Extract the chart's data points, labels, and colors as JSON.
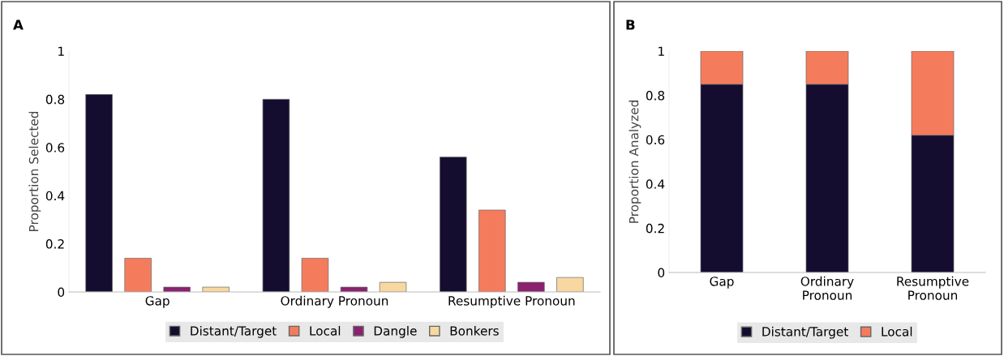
{
  "chart_data": [
    {
      "type": "bar",
      "title": "A",
      "ylabel": "Proportion Selected",
      "categories": [
        "Gap",
        "Ordinary Pronoun",
        "Resumptive Pronoun"
      ],
      "series": [
        {
          "name": "Distant/Target",
          "color": "#150d30",
          "values": [
            0.82,
            0.8,
            0.56
          ]
        },
        {
          "name": "Local",
          "color": "#f47c5c",
          "values": [
            0.14,
            0.14,
            0.34
          ]
        },
        {
          "name": "Dangle",
          "color": "#8a2270",
          "values": [
            0.02,
            0.02,
            0.04
          ]
        },
        {
          "name": "Bonkers",
          "color": "#f8d8a0",
          "values": [
            0.02,
            0.04,
            0.06
          ]
        }
      ],
      "ylim": [
        0,
        1
      ],
      "yticks": [
        0,
        0.2,
        0.4,
        0.6,
        0.8,
        1
      ],
      "grid": false,
      "legend": "bottom"
    },
    {
      "type": "bar",
      "stacked": true,
      "title": "B",
      "ylabel": "Proportion Analyzed",
      "categories": [
        "Gap",
        "Ordinary\nPronoun",
        "Resumptive\nPronoun"
      ],
      "series": [
        {
          "name": "Distant/Target",
          "color": "#150d30",
          "values": [
            0.85,
            0.85,
            0.62
          ]
        },
        {
          "name": "Local",
          "color": "#f47c5c",
          "values": [
            0.15,
            0.15,
            0.38
          ]
        }
      ],
      "ylim": [
        0,
        1
      ],
      "yticks": [
        0,
        0.2,
        0.4,
        0.6,
        0.8,
        1
      ],
      "grid": false,
      "legend": "bottom"
    }
  ]
}
